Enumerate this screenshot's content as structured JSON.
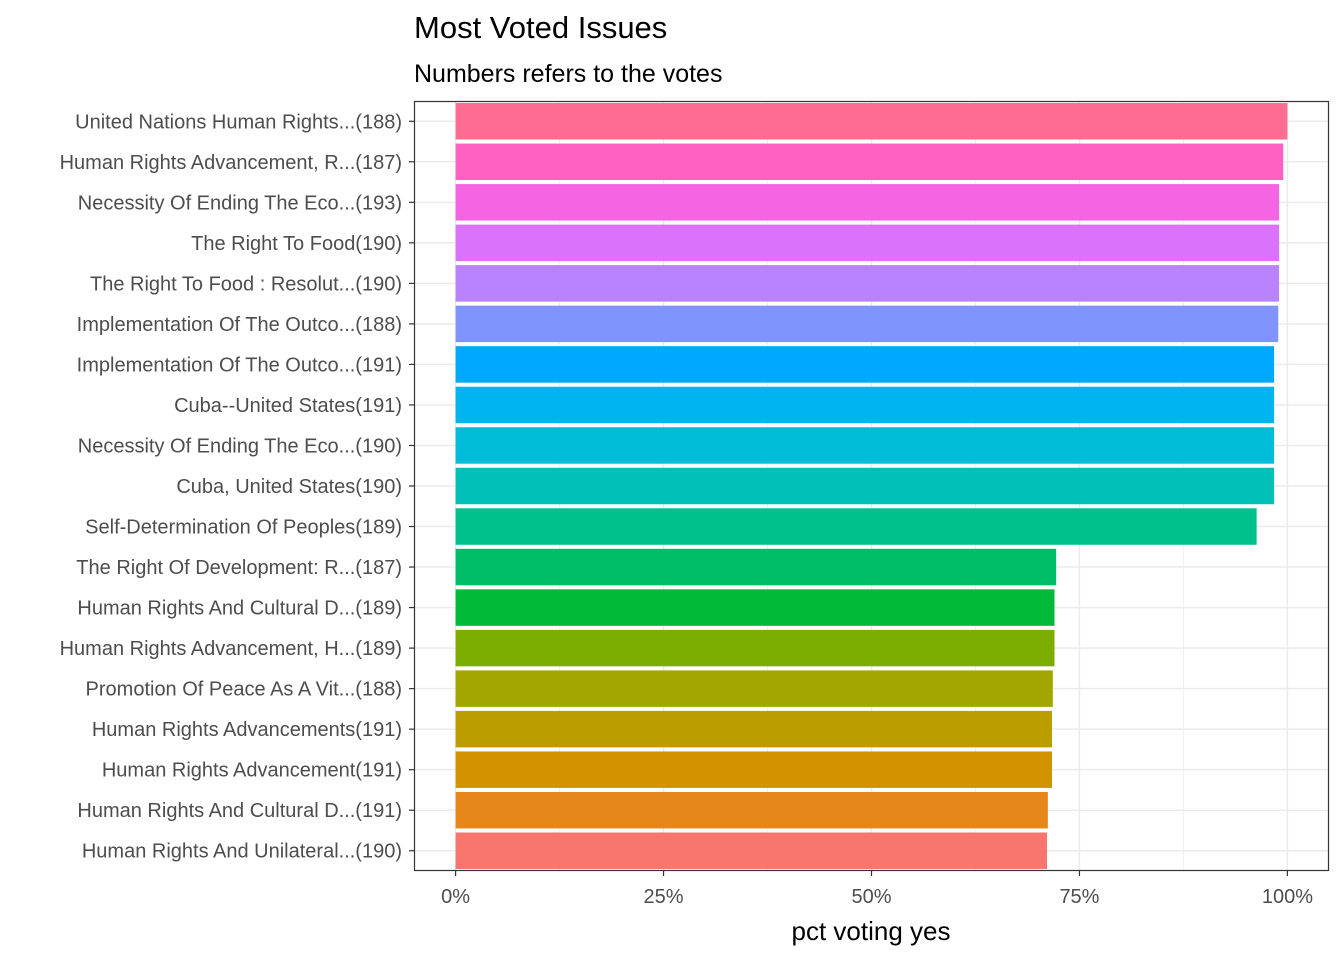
{
  "chart_data": {
    "type": "bar",
    "orientation": "horizontal",
    "title": "Most Voted Issues",
    "subtitle": "Numbers refers to the votes",
    "xlabel": "pct voting yes",
    "ylabel": "",
    "xlim": [
      -0.05,
      1.05
    ],
    "xticks": [
      0,
      0.25,
      0.5,
      0.75,
      1.0
    ],
    "xtick_labels": [
      "0%",
      "25%",
      "50%",
      "75%",
      "100%"
    ],
    "grid": true,
    "legend": "none",
    "bars": [
      {
        "label": "United Nations Human Rights...(188)",
        "value": 1.0,
        "color": "#FF6C91"
      },
      {
        "label": "Human Rights Advancement, R...(187)",
        "value": 0.995,
        "color": "#FF61C3"
      },
      {
        "label": "Necessity Of Ending The Eco...(193)",
        "value": 0.99,
        "color": "#F564E3"
      },
      {
        "label": "The Right To Food(190)",
        "value": 0.99,
        "color": "#DB72FB"
      },
      {
        "label": "The Right To Food : Resolut...(190)",
        "value": 0.99,
        "color": "#B983FF"
      },
      {
        "label": "Implementation Of The Outco...(188)",
        "value": 0.989,
        "color": "#8094FF"
      },
      {
        "label": "Implementation Of The Outco...(191)",
        "value": 0.984,
        "color": "#00A9FF"
      },
      {
        "label": "Cuba--United States(191)",
        "value": 0.984,
        "color": "#00B4EF"
      },
      {
        "label": "Necessity Of Ending The Eco...(190)",
        "value": 0.984,
        "color": "#00BCD8"
      },
      {
        "label": "Cuba, United States(190)",
        "value": 0.984,
        "color": "#00C0B8"
      },
      {
        "label": "Self-Determination Of Peoples(189)",
        "value": 0.963,
        "color": "#00C08B"
      },
      {
        "label": "The Right Of Development: R...(187)",
        "value": 0.722,
        "color": "#00BE67"
      },
      {
        "label": "Human Rights And Cultural D...(189)",
        "value": 0.72,
        "color": "#00BA38"
      },
      {
        "label": "Human Rights Advancement, H...(189)",
        "value": 0.72,
        "color": "#7CAE00"
      },
      {
        "label": "Promotion Of Peace As A Vit...(188)",
        "value": 0.718,
        "color": "#A3A500"
      },
      {
        "label": "Human Rights Advancements(191)",
        "value": 0.717,
        "color": "#BB9D00"
      },
      {
        "label": "Human Rights Advancement(191)",
        "value": 0.717,
        "color": "#D39200"
      },
      {
        "label": "Human Rights And Cultural D...(191)",
        "value": 0.712,
        "color": "#E7861B"
      },
      {
        "label": "Human Rights And Unilateral...(190)",
        "value": 0.711,
        "color": "#F8766D"
      }
    ]
  }
}
